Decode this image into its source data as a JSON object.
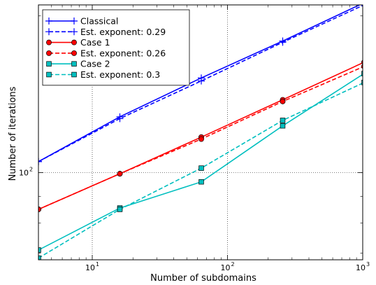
{
  "chart_data": {
    "type": "line",
    "xlabel": "Number of subdomains",
    "ylabel": "Number of iterations",
    "xscale": "log",
    "yscale": "log",
    "xlim": [
      4,
      1000
    ],
    "ylim": [
      68,
      210
    ],
    "x_major_ticks": [
      10,
      100,
      1000
    ],
    "x_major_tick_labels": [
      {
        "base": "10",
        "exp": "1"
      },
      {
        "base": "10",
        "exp": "2"
      },
      {
        "base": "10",
        "exp": "3"
      }
    ],
    "y_major_ticks": [
      100
    ],
    "y_major_tick_labels": [
      {
        "base": "10",
        "exp": "2"
      }
    ],
    "grid": true,
    "legend_position": "top-left",
    "series": [
      {
        "name": "Classical",
        "x": [
          4,
          16,
          64,
          256,
          1024
        ],
        "y": [
          105,
          128,
          152,
          179,
          212
        ],
        "color": "#0000ff",
        "style": "solid",
        "marker": "plus"
      },
      {
        "name": "Est. exponent: 0.29",
        "x": [
          4,
          16,
          64,
          256,
          1024
        ],
        "y": [
          105,
          127,
          150,
          178,
          210
        ],
        "color": "#0000ff",
        "style": "dashed",
        "marker": "plus"
      },
      {
        "name": "Case 1",
        "x": [
          4,
          16,
          64,
          256,
          1024
        ],
        "y": [
          85,
          99.5,
          117,
          138,
          163
        ],
        "color": "#ff0000",
        "style": "solid",
        "marker": "circle"
      },
      {
        "name": "Est. exponent: 0.26",
        "x": [
          4,
          16,
          64,
          256,
          1024
        ],
        "y": [
          85,
          99.5,
          116,
          137,
          160
        ],
        "color": "#ff0000",
        "style": "dashed",
        "marker": "circle"
      },
      {
        "name": "Case 2",
        "x": [
          4,
          16,
          64,
          256,
          1024
        ],
        "y": [
          71,
          85.5,
          96,
          123,
          155
        ],
        "color": "#00bfbf",
        "style": "solid",
        "marker": "square"
      },
      {
        "name": "Est. exponent: 0.3",
        "x": [
          4,
          16,
          64,
          256,
          1024
        ],
        "y": [
          68.5,
          85,
          102,
          126,
          149
        ],
        "color": "#00bfbf",
        "style": "dashed",
        "marker": "square"
      }
    ]
  }
}
